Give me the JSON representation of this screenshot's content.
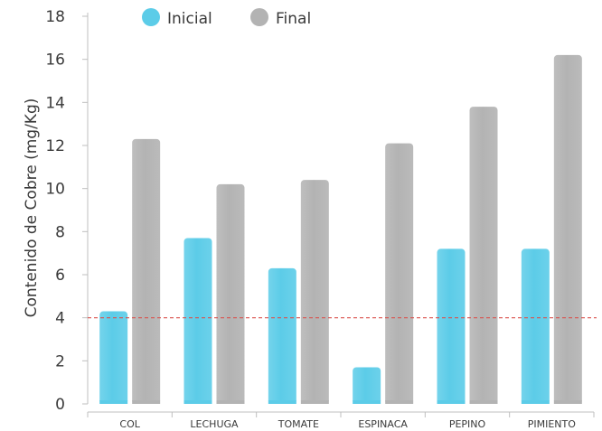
{
  "chart_data": {
    "type": "bar",
    "categories": [
      "COL",
      "LECHUGA",
      "TOMATE",
      "ESPINACA",
      "PEPINO",
      "PIMIENTO"
    ],
    "series": [
      {
        "name": "Inicial",
        "color": "#5ccce8",
        "values": [
          4.3,
          7.7,
          6.3,
          1.7,
          7.2,
          7.2
        ]
      },
      {
        "name": "Final",
        "color": "#b3b3b3",
        "values": [
          12.3,
          10.2,
          10.4,
          12.1,
          13.8,
          16.2
        ]
      }
    ],
    "title": "",
    "xlabel": "",
    "ylabel": "Contenido de Cobre (mg/Kg)",
    "ylim": [
      0,
      18
    ],
    "yticks": [
      0,
      2,
      4,
      6,
      8,
      10,
      12,
      14,
      16,
      18
    ],
    "reference_line": {
      "value": 4,
      "style": "dashed",
      "color": "#d9534f"
    },
    "legend_position": "top",
    "grid": false
  }
}
